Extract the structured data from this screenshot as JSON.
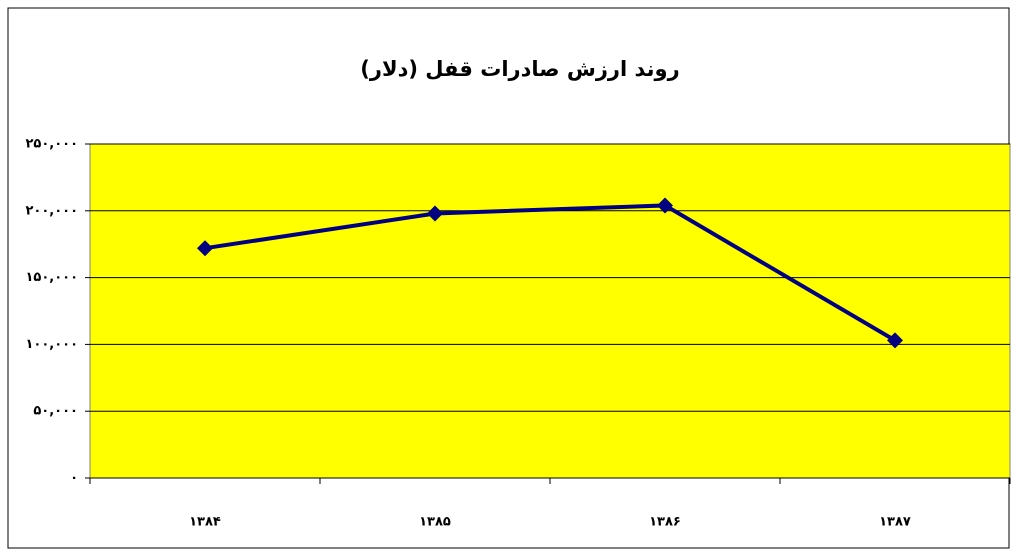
{
  "chart_data": {
    "type": "line",
    "title": "روند ارزش صادرات قفل (دلار)",
    "categories": [
      "۱۳۸۴",
      "۱۳۸۵",
      "۱۳۸۶",
      "۱۳۸۷"
    ],
    "series": [
      {
        "name": "ارزش صادرات",
        "color": "#000080",
        "values": [
          172000,
          198000,
          204000,
          103000
        ]
      }
    ],
    "ylim": [
      0,
      250000
    ],
    "yticks": [
      {
        "value": 0,
        "label": "۰"
      },
      {
        "value": 50000,
        "label": "۵۰,۰۰۰"
      },
      {
        "value": 100000,
        "label": "۱۰۰,۰۰۰"
      },
      {
        "value": 150000,
        "label": "۱۵۰,۰۰۰"
      },
      {
        "value": 200000,
        "label": "۲۰۰,۰۰۰"
      },
      {
        "value": 250000,
        "label": "۲۵۰,۰۰۰"
      }
    ],
    "grid": true,
    "plot_background": "#ffff00"
  }
}
